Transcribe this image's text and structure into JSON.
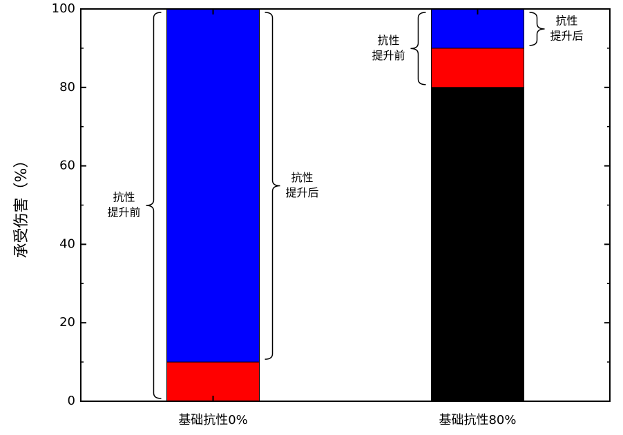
{
  "chart_data": {
    "type": "stacked_bar",
    "y_label": "承受伤害（%）",
    "categories": [
      "基础抗性0%",
      "基础抗性80%"
    ],
    "series": [
      {
        "color": "#000000",
        "values": [
          0,
          80
        ]
      },
      {
        "color": "#ff0000",
        "values": [
          10,
          10
        ]
      },
      {
        "color": "#0000ff",
        "values": [
          90,
          10
        ]
      }
    ],
    "ylim": [
      0,
      100
    ],
    "yticks": [
      0,
      20,
      40,
      60,
      80,
      100
    ],
    "yminorticks": [
      10,
      30,
      50,
      70,
      90
    ],
    "annotations": [
      {
        "lines": [
          "抗性",
          "提升前"
        ],
        "category": 0,
        "side": "left",
        "range": [
          0,
          100
        ]
      },
      {
        "lines": [
          "抗性",
          "提升后"
        ],
        "category": 0,
        "side": "right",
        "range": [
          10,
          100
        ]
      },
      {
        "lines": [
          "抗性",
          "提升前"
        ],
        "category": 1,
        "side": "left",
        "range": [
          80,
          100
        ]
      },
      {
        "lines": [
          "抗性",
          "提升后"
        ],
        "category": 1,
        "side": "right",
        "range": [
          90,
          100
        ]
      }
    ]
  }
}
